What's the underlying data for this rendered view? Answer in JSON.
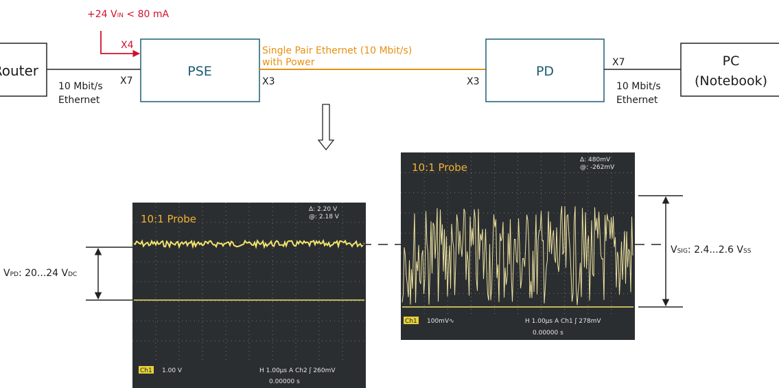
{
  "supply": {
    "label": [
      "+24 V",
      "IN",
      " < 80 mA"
    ],
    "port": "X4"
  },
  "router": {
    "label": "Router",
    "port": "X7",
    "link": [
      "10 Mbit/s",
      "Ethernet"
    ]
  },
  "pse": {
    "label": "PSE",
    "port": "X3"
  },
  "spe_link": {
    "label": [
      "Single Pair Ethernet (10 Mbit/s)",
      "with Power"
    ]
  },
  "pd": {
    "label": "PD",
    "port_in": "X3",
    "port_out": "X7"
  },
  "pc": {
    "label": [
      "PC",
      "(Notebook)"
    ],
    "link": [
      "10 Mbit/s",
      "Ethernet"
    ]
  },
  "scope_dc": {
    "probe": "10:1 Probe",
    "delta": "Δ:  2.20 V",
    "at": "@:  2.18 V",
    "channel": "Ch1",
    "scale": "1.00 V",
    "timebase": "H 1.00µs  A  Ch2  ʃ  260mV",
    "offset": "0.00000 s"
  },
  "scope_sig": {
    "probe": "10:1 Probe",
    "delta": "Δ:   480mV",
    "at": "@:  -262mV",
    "channel": "Ch1",
    "scale": "100mV∿",
    "timebase": "H 1.00µs  A  Ch1  ʃ  278mV",
    "offset": "0.00000 s"
  },
  "annotations": {
    "v_pd": [
      "V",
      "PD",
      ": 20...24 V",
      "DC"
    ],
    "v_sig": [
      "V",
      "SIG",
      ": 2.4...2.6 V",
      "SS"
    ]
  }
}
